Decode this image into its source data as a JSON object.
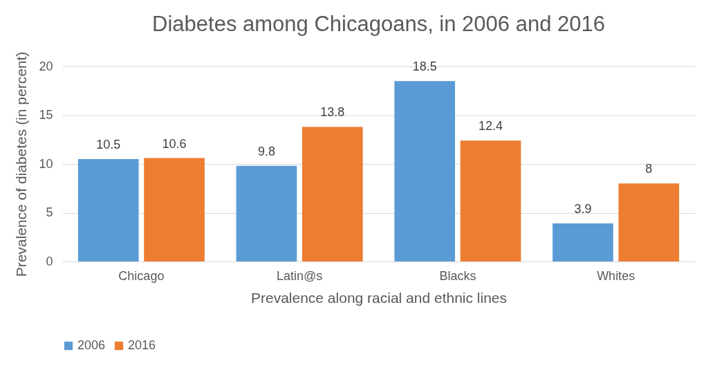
{
  "chart_data": {
    "type": "bar",
    "title": "Diabetes among Chicagoans, in 2006 and 2016",
    "xlabel": "Prevalence along racial and ethnic lines",
    "ylabel": "Prevalence of diabetes (in percent)",
    "categories": [
      "Chicago",
      "Latin@s",
      "Blacks",
      "Whites"
    ],
    "series": [
      {
        "name": "2006",
        "color": "#5b9bd5",
        "values": [
          10.5,
          9.8,
          18.5,
          3.9
        ]
      },
      {
        "name": "2016",
        "color": "#ed7d31",
        "values": [
          10.6,
          13.8,
          12.4,
          8
        ]
      }
    ],
    "ylim": [
      0,
      20
    ],
    "yticks": [
      0,
      5,
      10,
      15,
      20
    ],
    "grid": "y",
    "legend": "bottom",
    "data_labels": true
  }
}
